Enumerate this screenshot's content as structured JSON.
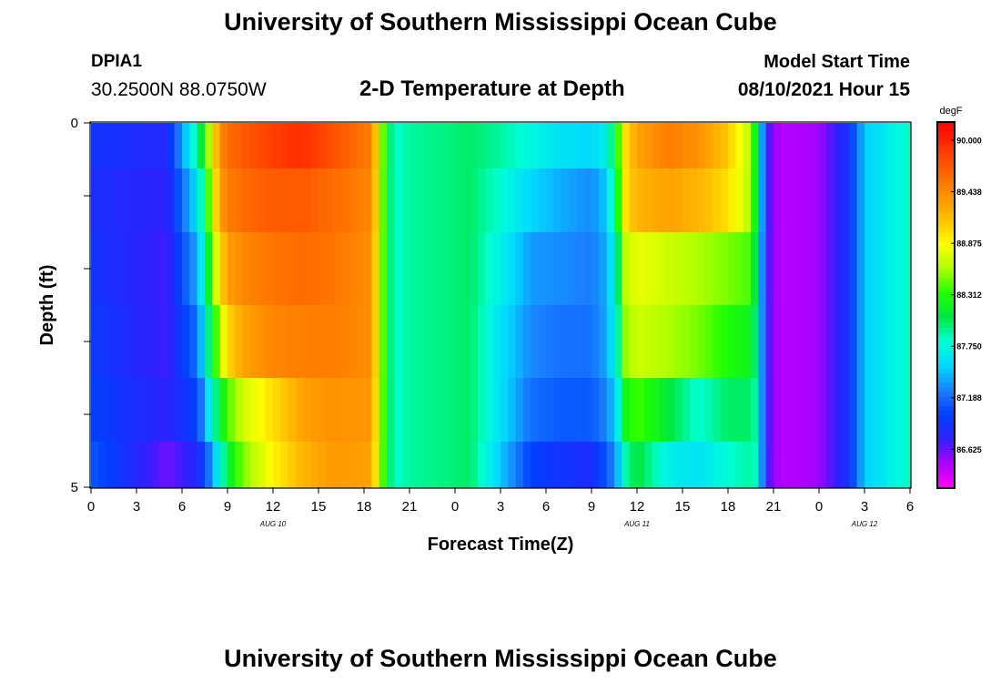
{
  "header": {
    "title_top": "University of Southern Mississippi Ocean Cube",
    "title_bottom": "University of Southern Mississippi Ocean Cube",
    "station_id": "DPIA1",
    "station_coords": "30.2500N  88.0750W",
    "plot_title": "2-D Temperature at Depth",
    "model_start_label": "Model Start Time",
    "model_start_value": "08/10/2021 Hour 15"
  },
  "chart_data": {
    "type": "heatmap",
    "xlabel": "Forecast Time(Z)",
    "ylabel": "Depth (ft)",
    "x_tick_labels": [
      "0",
      "3",
      "6",
      "9",
      "12",
      "15",
      "18",
      "21",
      "0",
      "3",
      "6",
      "9",
      "12",
      "15",
      "18",
      "21",
      "0",
      "3",
      "6"
    ],
    "day_labels": [
      {
        "text": "AUG  10",
        "hour": 12
      },
      {
        "text": "AUG  11",
        "hour": 36
      },
      {
        "text": "AUG  12",
        "hour": 51
      }
    ],
    "x_range_hours": [
      0,
      54
    ],
    "y_range": [
      0,
      5
    ],
    "y_tick_labels": [
      "0",
      "5"
    ],
    "colorbar": {
      "unit": "degF",
      "ticks": [
        "90.000",
        "89.438",
        "88.875",
        "88.312",
        "87.750",
        "87.188",
        "86.625"
      ],
      "min": 86.2,
      "max": 90.2,
      "colors": [
        "#ff00ff",
        "#b000ff",
        "#3020ff",
        "#0040ff",
        "#1a80ff",
        "#00d8ff",
        "#00ffd8",
        "#00e840",
        "#20ff00",
        "#b0ff00",
        "#ffff00",
        "#ffc000",
        "#ff9000",
        "#ff6000",
        "#ff3000",
        "#ff0000"
      ]
    },
    "depth_levels_ft": [
      0.25,
      1.0,
      2.0,
      3.0,
      4.0,
      4.75
    ],
    "time_keys_hours": [
      0,
      5,
      7,
      7.6,
      8,
      8.5,
      9,
      10,
      12,
      14,
      16,
      18.5,
      19.5,
      20,
      21,
      25,
      27,
      29,
      31,
      33,
      34,
      34.7,
      35,
      36,
      38,
      40,
      42,
      43.5,
      44,
      44.5,
      45,
      46,
      48,
      50,
      51,
      54
    ],
    "temperature_rows": [
      [
        86.9,
        86.8,
        87.9,
        88.4,
        88.9,
        89.4,
        89.6,
        89.7,
        89.85,
        89.95,
        89.75,
        89.5,
        88.1,
        87.8,
        87.9,
        88.0,
        87.9,
        87.75,
        87.6,
        87.55,
        87.7,
        88.3,
        88.9,
        89.3,
        89.5,
        89.4,
        89.1,
        88.6,
        87.9,
        86.8,
        86.5,
        86.45,
        86.5,
        86.9,
        87.5,
        87.85
      ],
      [
        86.85,
        86.75,
        87.6,
        88.2,
        88.8,
        89.3,
        89.5,
        89.6,
        89.7,
        89.7,
        89.6,
        89.45,
        88.1,
        87.8,
        87.9,
        88.0,
        87.8,
        87.55,
        87.4,
        87.3,
        87.5,
        88.2,
        88.9,
        89.2,
        89.3,
        89.2,
        89.0,
        88.6,
        87.9,
        86.8,
        86.5,
        86.45,
        86.5,
        86.9,
        87.5,
        87.85
      ],
      [
        86.9,
        86.7,
        87.4,
        88.0,
        88.5,
        89.0,
        89.3,
        89.45,
        89.55,
        89.6,
        89.55,
        89.4,
        88.1,
        87.8,
        87.9,
        88.0,
        87.7,
        87.35,
        87.3,
        87.25,
        87.4,
        87.9,
        88.6,
        88.8,
        88.7,
        88.6,
        88.5,
        88.4,
        87.8,
        86.8,
        86.5,
        86.45,
        86.5,
        86.9,
        87.5,
        87.85
      ],
      [
        86.95,
        86.7,
        87.2,
        87.8,
        88.2,
        88.6,
        89.0,
        89.3,
        89.45,
        89.5,
        89.5,
        89.4,
        88.1,
        87.8,
        87.9,
        88.0,
        87.6,
        87.3,
        87.2,
        87.2,
        87.4,
        87.8,
        88.5,
        88.7,
        88.6,
        88.5,
        88.3,
        88.2,
        87.8,
        86.8,
        86.5,
        86.45,
        86.5,
        86.9,
        87.5,
        87.85
      ],
      [
        87.0,
        86.75,
        87.0,
        87.5,
        87.8,
        88.1,
        88.4,
        88.7,
        89.0,
        89.3,
        89.4,
        89.35,
        88.1,
        87.8,
        87.9,
        88.0,
        87.6,
        87.2,
        87.1,
        87.1,
        87.3,
        87.6,
        88.2,
        88.4,
        88.1,
        87.8,
        88.0,
        88.0,
        87.8,
        86.8,
        86.5,
        86.45,
        86.5,
        86.9,
        87.5,
        87.85
      ],
      [
        87.1,
        86.6,
        86.8,
        87.1,
        87.4,
        87.7,
        88.1,
        88.5,
        88.9,
        89.2,
        89.35,
        89.3,
        88.1,
        87.8,
        87.9,
        88.0,
        87.5,
        87.0,
        86.9,
        86.85,
        87.1,
        87.4,
        87.8,
        88.1,
        87.7,
        87.6,
        87.8,
        87.9,
        87.8,
        86.8,
        86.5,
        86.45,
        86.5,
        86.9,
        87.5,
        87.85
      ]
    ]
  }
}
